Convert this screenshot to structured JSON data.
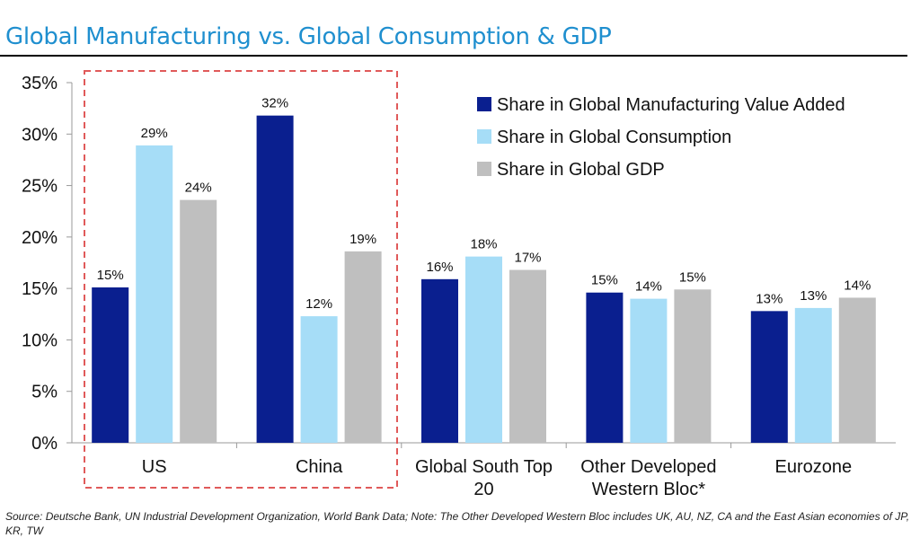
{
  "title": "Global Manufacturing vs. Global Consumption & GDP",
  "source_note": "Source: Deutsche Bank, UN Industrial Development Organization, World Bank Data; Note: The Other Developed Western Bloc includes UK, AU, NZ, CA and the East Asian economies of JP, KR, TW",
  "colors": {
    "manufacturing": "#0a1f8f",
    "consumption": "#a6ddf7",
    "gdp": "#bfbfbf",
    "highlight_box": "#e05a5a",
    "title": "#1f8fcf"
  },
  "chart_data": {
    "type": "bar",
    "title": "Global Manufacturing vs. Global Consumption & GDP",
    "categories": [
      [
        "US"
      ],
      [
        "China"
      ],
      [
        "Global South Top",
        "20"
      ],
      [
        "Other Developed",
        "Western Bloc*"
      ],
      [
        "Eurozone"
      ]
    ],
    "series": [
      {
        "name": "Share in Global Manufacturing Value Added",
        "color": "#0a1f8f",
        "values": [
          15.1,
          31.8,
          15.9,
          14.6,
          12.8
        ],
        "labels": [
          "15%",
          "32%",
          "16%",
          "15%",
          "13%"
        ]
      },
      {
        "name": "Share in Global Consumption",
        "color": "#a6ddf7",
        "values": [
          28.9,
          12.3,
          18.1,
          14.0,
          13.1
        ],
        "labels": [
          "29%",
          "12%",
          "18%",
          "14%",
          "13%"
        ]
      },
      {
        "name": "Share in Global GDP",
        "color": "#bfbfbf",
        "values": [
          23.6,
          18.6,
          16.8,
          14.9,
          14.1
        ],
        "labels": [
          "24%",
          "19%",
          "17%",
          "15%",
          "14%"
        ]
      }
    ],
    "y_ticks": [
      "0%",
      "5%",
      "10%",
      "15%",
      "20%",
      "25%",
      "30%",
      "35%"
    ],
    "ylim": [
      0,
      35
    ],
    "xlabel": "",
    "ylabel": "",
    "grid": false,
    "legend_position": "top-right",
    "highlight": "dashed box around US and China"
  }
}
